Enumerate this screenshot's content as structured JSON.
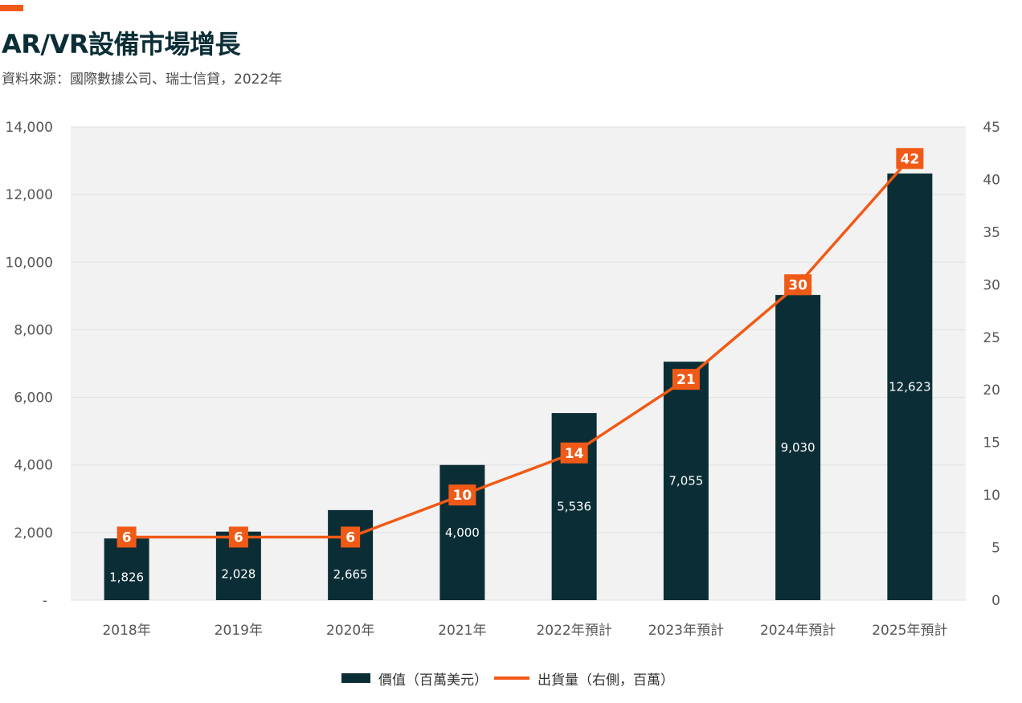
{
  "header": {
    "title": "AR/VR設備市場增長",
    "subtitle": "資料來源：國際數據公司、瑞士信貸，2022年"
  },
  "colors": {
    "bar": "#0B2E36",
    "line": "#F05A16",
    "accent": "#F05A16",
    "plot_bg": "#F2F2F2"
  },
  "legend": {
    "bar_label": "價值（百萬美元）",
    "line_label": "出貨量（右側，百萬）"
  },
  "chart_data": {
    "type": "bar",
    "title": "AR/VR設備市場增長",
    "categories": [
      "2018年",
      "2019年",
      "2020年",
      "2021年",
      "2022年預計",
      "2023年預計",
      "2024年預計",
      "2025年預計"
    ],
    "series": [
      {
        "name": "價值（百萬美元）",
        "type": "bar",
        "axis": "left",
        "values": [
          1826,
          2028,
          2665,
          4000,
          5536,
          7055,
          9030,
          12623
        ],
        "labels": [
          "1,826",
          "2,028",
          "2,665",
          "4,000",
          "5,536",
          "7,055",
          "9,030",
          "12,623"
        ]
      },
      {
        "name": "出貨量（右側，百萬）",
        "type": "line",
        "axis": "right",
        "values": [
          6,
          6,
          6,
          10,
          14,
          21,
          30,
          42
        ],
        "labels": [
          "6",
          "6",
          "6",
          "10",
          "14",
          "21",
          "30",
          "42"
        ]
      }
    ],
    "y_left": {
      "ylim": [
        0,
        14000
      ],
      "ticks": [
        0,
        2000,
        4000,
        6000,
        8000,
        10000,
        12000,
        14000
      ],
      "tick_labels": [
        "-",
        "2,000",
        "4,000",
        "6,000",
        "8,000",
        "10,000",
        "12,000",
        "14,000"
      ]
    },
    "y_right": {
      "ylim": [
        0,
        45
      ],
      "ticks": [
        0,
        5,
        10,
        15,
        20,
        25,
        30,
        35,
        40,
        45
      ],
      "tick_labels": [
        "0",
        "5",
        "10",
        "15",
        "20",
        "25",
        "30",
        "35",
        "40",
        "45"
      ]
    },
    "grid": true,
    "legend_position": "bottom"
  }
}
